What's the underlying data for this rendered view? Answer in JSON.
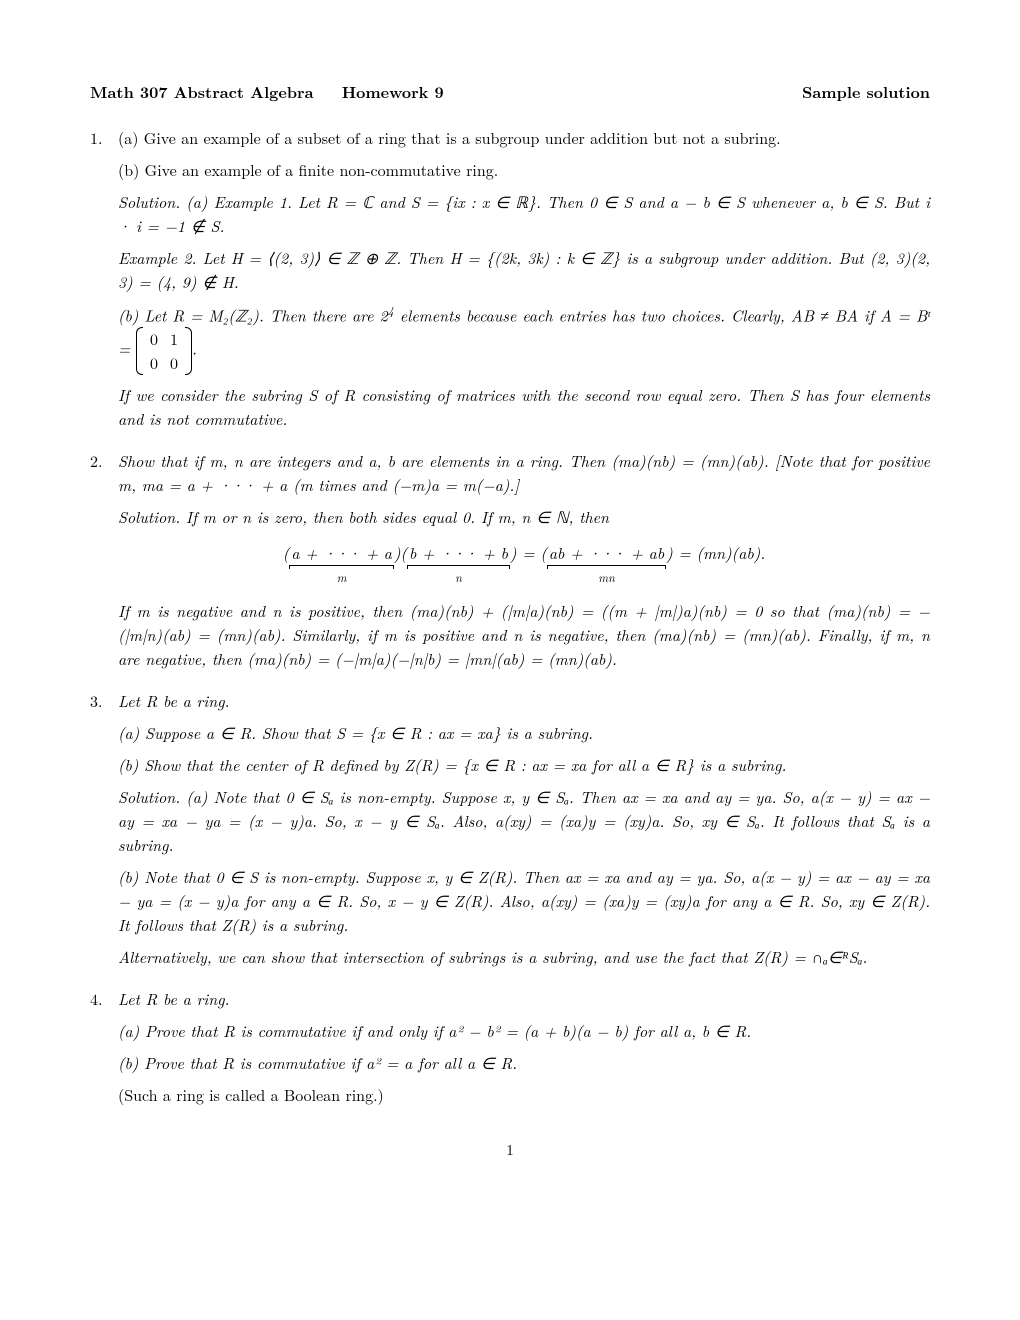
{
  "header": {
    "course": "Math 307 Abstract Algebra",
    "hw": "Homework 9",
    "right": "Sample solution"
  },
  "p1": {
    "num": "1.",
    "a": "(a) Give an example of a subset of a ring that is a subgroup under addition but not a subring.",
    "b": "(b) Give an example of a finite non-commutative ring.",
    "sol1": "Solution. (a) Example 1. Let R = ℂ and S = {ix : x ∈ ℝ}. Then 0 ∈ S and a − b ∈ S whenever a, b ∈ S. But i · i = −1 ∉ S.",
    "sol2": "Example 2. Let H = ⟨(2, 3)⟩ ∈ ℤ ⊕ ℤ. Then H = {(2k, 3k) : k ∈ ℤ} is a subgroup under addition. But (2, 3)(2, 3) = (4, 9) ∉ H.",
    "sol3a": "(b) Let R = M₂(ℤ₂). Then there are 2",
    "sol3b": " elements because each entries has two choices. Clearly, AB ≠ BA if A = Bᵗ = ",
    "sol3c": ".",
    "sol4": "If we consider the subring S of R consisting of matrices with the second row equal zero. Then S has four elements and is not commutative.",
    "matrix": [
      [
        "0",
        "1"
      ],
      [
        "0",
        "0"
      ]
    ],
    "exp4": "4"
  },
  "p2": {
    "num": "2.",
    "q": "Show that if m, n are integers and a, b are elements in a ring. Then (ma)(nb) = (mn)(ab). [Note that for positive m, ma = a + ··· + a (m times and (−m)a = m(−a).]",
    "sol1": "Solution. If m or n is zero, then both sides equal 0. If m, n ∈ ℕ, then",
    "disp_lhs1": "a + ··· + a",
    "disp_sub1": "m",
    "disp_lhs2": "b + ··· + b",
    "disp_sub2": "n",
    "disp_rhs": "ab + ··· + ab",
    "disp_sub3": "mn",
    "disp_tail": " = (mn)(ab).",
    "sol2": "If m is negative and n is positive, then (ma)(nb) + (|m|a)(nb) = ((m + |m|)a)(nb) = 0 so that (ma)(nb) = −(|m|n)(ab) = (mn)(ab). Similarly, if m is positive and n is negative, then (ma)(nb) = (mn)(ab). Finally, if m, n are negative, then (ma)(nb) = (−|m|a)(−|n|b) = |mn|(ab) = (mn)(ab)."
  },
  "p3": {
    "num": "3.",
    "q": "Let R be a ring.",
    "a": "(a) Suppose a ∈ R. Show that S = {x ∈ R : ax = xa} is a subring.",
    "b": "(b) Show that the center of R defined by Z(R) = {x ∈ R : ax = xa for all a ∈ R} is a subring.",
    "sol1": "Solution. (a) Note that 0 ∈ Sₐ is non-empty. Suppose x, y ∈ Sₐ. Then ax = xa and ay = ya. So, a(x − y) = ax − ay = xa − ya = (x − y)a. So, x − y ∈ Sₐ. Also, a(xy) = (xa)y = (xy)a. So, xy ∈ Sₐ. It follows that Sₐ is a subring.",
    "sol2": "(b) Note that 0 ∈ S is non-empty. Suppose x, y ∈ Z(R). Then ax = xa and ay = ya. So, a(x − y) = ax − ay = xa − ya = (x − y)a for any a ∈ R. So, x − y ∈ Z(R). Also, a(xy) = (xa)y = (xy)a for any a ∈ R. So, xy ∈ Z(R). It follows that Z(R) is a subring.",
    "sol3": "Alternatively, we can show that intersection of subrings is a subring, and use the fact that Z(R) = ∩ₐ∈ᴿSₐ."
  },
  "p4": {
    "num": "4.",
    "q": "Let R be a ring.",
    "a": "(a) Prove that R is commutative if and only if a² − b² = (a + b)(a − b) for all a, b ∈ R.",
    "b": "(b) Prove that R is commutative if a² = a for all a ∈ R.",
    "c": "(Such a ring is called a Boolean ring.)"
  },
  "pagenum": "1"
}
